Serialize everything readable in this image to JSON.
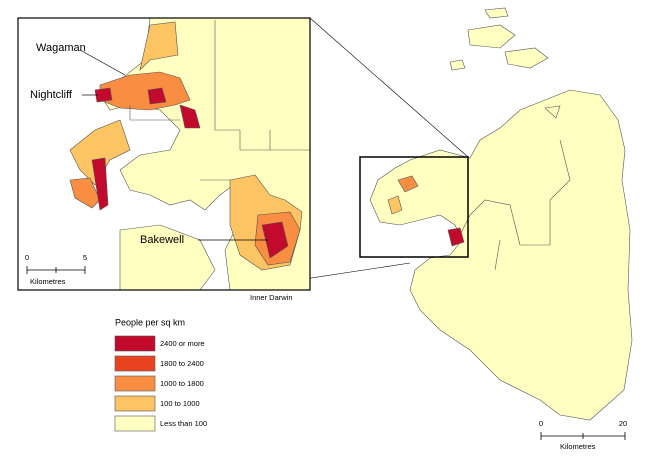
{
  "inset": {
    "place_labels": [
      "Wagaman",
      "Nightcliff",
      "Bakewell"
    ],
    "caption": "Inner Darwin",
    "scale": {
      "ticks": [
        0,
        5
      ],
      "unit": "Kilometres"
    }
  },
  "legend": {
    "title": "People per sq km",
    "items": [
      {
        "label": "2400 or more",
        "color": "#c20a2c"
      },
      {
        "label": "1800 to 2400",
        "color": "#e8431e"
      },
      {
        "label": "1000 to 1800",
        "color": "#f98e42"
      },
      {
        "label": "100 to 1000",
        "color": "#fcc462"
      },
      {
        "label": "Less than 100",
        "color": "#ffffc2"
      }
    ]
  },
  "main_map": {
    "scale": {
      "ticks": [
        0,
        20
      ],
      "unit": "Kilometres"
    }
  }
}
